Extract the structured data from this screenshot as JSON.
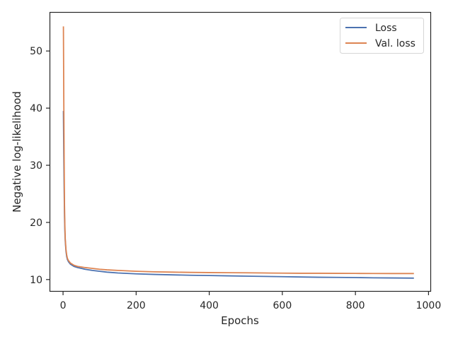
{
  "chart_data": {
    "type": "line",
    "xlabel": "Epochs",
    "ylabel": "Negative log-likelihood",
    "xlim": [
      -35,
      1005
    ],
    "ylim": [
      8,
      56.7
    ],
    "xticks": [
      0,
      200,
      400,
      600,
      800,
      1000
    ],
    "yticks": [
      10,
      20,
      30,
      40,
      50
    ],
    "grid": false,
    "legend_position": "top-right",
    "series": [
      {
        "name": "Loss",
        "color": "#4c72b0",
        "x": [
          1,
          2,
          3,
          4,
          5,
          6,
          8,
          10,
          12,
          15,
          20,
          25,
          30,
          40,
          50,
          60,
          80,
          100,
          120,
          150,
          200,
          250,
          300,
          350,
          400,
          450,
          500,
          550,
          600,
          650,
          700,
          750,
          800,
          850,
          900,
          960
        ],
        "y": [
          39.5,
          32.0,
          26.0,
          21.0,
          18.5,
          16.8,
          15.0,
          14.0,
          13.5,
          13.1,
          12.7,
          12.5,
          12.3,
          12.1,
          11.95,
          11.8,
          11.6,
          11.45,
          11.3,
          11.15,
          11.0,
          10.9,
          10.82,
          10.75,
          10.7,
          10.65,
          10.6,
          10.55,
          10.5,
          10.45,
          10.4,
          10.38,
          10.35,
          10.3,
          10.28,
          10.25
        ]
      },
      {
        "name": "Val. loss",
        "color": "#dd8452",
        "x": [
          1,
          2,
          3,
          4,
          5,
          6,
          8,
          10,
          12,
          15,
          20,
          25,
          30,
          40,
          50,
          60,
          80,
          100,
          120,
          150,
          200,
          250,
          300,
          350,
          400,
          450,
          500,
          550,
          600,
          650,
          700,
          750,
          800,
          850,
          900,
          960
        ],
        "y": [
          54.3,
          42.0,
          31.0,
          23.0,
          19.5,
          17.2,
          15.3,
          14.3,
          13.7,
          13.3,
          12.9,
          12.7,
          12.5,
          12.3,
          12.2,
          12.1,
          11.95,
          11.8,
          11.7,
          11.6,
          11.45,
          11.35,
          11.3,
          11.25,
          11.22,
          11.2,
          11.18,
          11.15,
          11.12,
          11.1,
          11.1,
          11.08,
          11.07,
          11.06,
          11.05,
          11.05
        ]
      }
    ]
  }
}
